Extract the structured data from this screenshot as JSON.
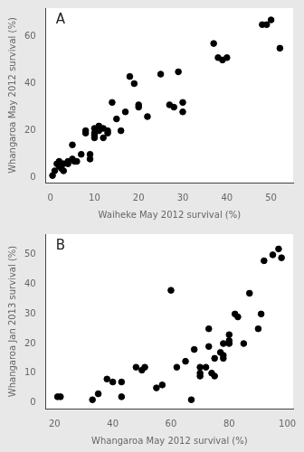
{
  "chart_data": [
    {
      "type": "scatter",
      "annotations": [
        "A"
      ],
      "xlabel": "Waiheke May 2012 survival (%)",
      "ylabel": "Whangaroa May 2012 survival (%)",
      "xlim": [
        -1,
        55
      ],
      "ylim": [
        -2,
        72
      ],
      "xticks": [
        0,
        10,
        20,
        30,
        40,
        50
      ],
      "yticks": [
        0,
        20,
        40,
        60
      ],
      "x": [
        0.5,
        1,
        1.5,
        2,
        2,
        2.5,
        3,
        3,
        4,
        4,
        5,
        5,
        5.5,
        6,
        7,
        8,
        8,
        9,
        9,
        10,
        10,
        10,
        10,
        11,
        11,
        12,
        12,
        13,
        13,
        14,
        15,
        16,
        17,
        18,
        19,
        20,
        20,
        22,
        25,
        27,
        28,
        29,
        30,
        30,
        37,
        38,
        39,
        40,
        48,
        49,
        50,
        52
      ],
      "values": [
        1,
        3,
        6,
        5,
        7,
        4,
        6,
        3,
        6,
        7,
        8,
        14,
        7,
        7,
        10,
        19,
        20,
        8,
        10,
        18,
        17,
        19,
        21,
        20,
        22,
        17,
        21,
        19,
        20,
        32,
        25,
        20,
        28,
        43,
        40,
        30,
        31,
        26,
        44,
        31,
        30,
        45,
        32,
        28,
        57,
        51,
        50,
        51,
        65,
        65,
        67,
        55
      ],
      "color": "black",
      "grid": false
    },
    {
      "type": "scatter",
      "annotations": [
        "B"
      ],
      "xlabel": "Whangaroa May 2012 survival (%)",
      "ylabel": "Whangaroa Jan 2013 survival (%)",
      "xlim": [
        17,
        102
      ],
      "ylim": [
        -2,
        57
      ],
      "xticks": [
        20,
        40,
        60,
        80,
        100
      ],
      "yticks": [
        0,
        10,
        20,
        30,
        40,
        50
      ],
      "x": [
        21,
        22,
        33,
        35,
        38,
        40,
        43,
        43,
        48,
        50,
        51,
        55,
        57,
        60,
        62,
        65,
        67,
        68,
        70,
        70,
        70,
        72,
        73,
        73,
        74,
        75,
        75,
        77,
        78,
        78,
        78,
        80,
        80,
        80,
        82,
        83,
        85,
        87,
        90,
        91,
        92,
        95,
        97,
        98
      ],
      "values": [
        2,
        2,
        1,
        3,
        8,
        7,
        2,
        7,
        12,
        11,
        12,
        5,
        6,
        38,
        12,
        14,
        1,
        18,
        9,
        10,
        12,
        12,
        19,
        25,
        10,
        9,
        15,
        17,
        20,
        15,
        16,
        21,
        23,
        20,
        30,
        29,
        20,
        37,
        25,
        30,
        48,
        50,
        52,
        49
      ],
      "color": "black",
      "grid": false
    }
  ]
}
